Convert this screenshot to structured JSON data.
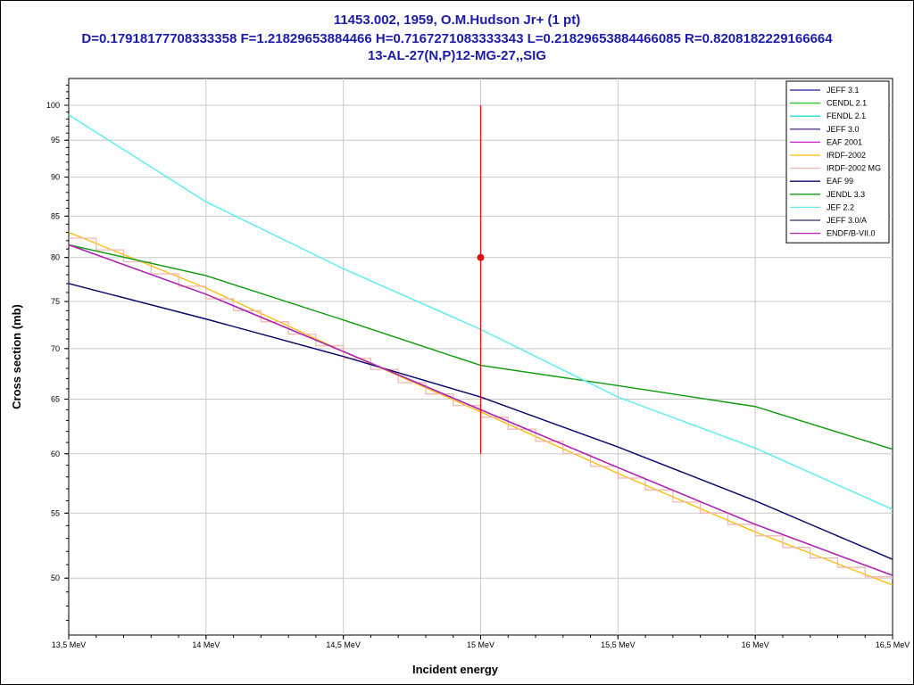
{
  "title": {
    "line1": "11453.002, 1959, O.M.Hudson Jr+ (1 pt)",
    "line2": "D=0.17918177708333358 F=1.21829653884466 H=0.7167271083333343 L=0.21829653884466085 R=0.8208182229166664",
    "line3": "13-AL-27(N,P)12-MG-27,,SIG"
  },
  "chart_data": {
    "type": "line",
    "xlabel": "Incident energy",
    "ylabel": "Cross section (mb)",
    "xlim": [
      13.5,
      16.5
    ],
    "ylim": [
      46,
      104
    ],
    "yscale": "log",
    "grid": true,
    "legend_position": "top-right",
    "x_ticks": [
      13.5,
      14.0,
      14.5,
      15.0,
      15.5,
      16.0,
      16.5
    ],
    "x_tick_labels": [
      "13,5 MeV",
      "14 MeV",
      "14,5 MeV",
      "15 MeV",
      "15,5 MeV",
      "16 MeV",
      "16,5 MeV"
    ],
    "y_ticks": [
      50,
      55,
      60,
      65,
      70,
      75,
      80,
      85,
      90,
      95,
      100
    ],
    "y_tick_labels": [
      "50",
      "55",
      "60",
      "65",
      "70",
      "75",
      "80",
      "85",
      "90",
      "95",
      "100"
    ],
    "series": [
      {
        "name": "JEFF 3.1",
        "color": "#1a1a9e",
        "x": [
          13.5,
          14.0,
          14.5,
          15.0,
          15.5,
          16.0,
          16.5
        ],
        "y": [
          77.0,
          73.1,
          69.2,
          65.2,
          60.6,
          56.0,
          51.4
        ]
      },
      {
        "name": "CENDL 2.1",
        "color": "#22cc22",
        "x": [
          13.5,
          14.0,
          14.5,
          15.0,
          15.5,
          16.0,
          16.5
        ],
        "y": [
          81.5,
          77.9,
          73.0,
          68.3,
          66.3,
          64.3,
          60.4
        ]
      },
      {
        "name": "FENDL 2.1",
        "color": "#22dddd",
        "x": [
          13.5,
          14.0,
          14.5,
          15.0,
          15.5,
          16.0,
          16.5
        ],
        "y": [
          98.6,
          86.8,
          78.7,
          72.0,
          65.2,
          60.5,
          55.3
        ]
      },
      {
        "name": "JEFF 3.0",
        "color": "#5a3a8a",
        "x": [
          13.5,
          14.0,
          14.5,
          15.0,
          15.5,
          16.0,
          16.5
        ],
        "y": [
          81.5,
          75.8,
          69.7,
          64.0,
          58.8,
          54.1,
          50.2
        ]
      },
      {
        "name": "EAF 2001",
        "color": "#cc22cc",
        "x": [
          13.5,
          14.0,
          14.5,
          15.0,
          15.5,
          16.0,
          16.5
        ],
        "y": [
          81.5,
          75.8,
          69.7,
          64.0,
          58.8,
          54.1,
          50.2
        ]
      },
      {
        "name": "IRDF-2002",
        "color": "#ffbb00",
        "x": [
          13.5,
          14.0,
          14.5,
          15.0,
          15.5,
          16.0,
          16.5
        ],
        "y": [
          83.0,
          76.5,
          69.7,
          63.8,
          58.3,
          53.5,
          49.5
        ]
      },
      {
        "name": "IRDF-2002 MG",
        "color": "#f0b8b0",
        "step": true,
        "x": [
          13.5,
          13.6,
          13.7,
          13.8,
          13.9,
          14.0,
          14.1,
          14.2,
          14.3,
          14.4,
          14.5,
          14.6,
          14.7,
          14.8,
          14.9,
          15.0,
          15.1,
          15.2,
          15.3,
          15.4,
          15.5,
          15.6,
          15.7,
          15.8,
          15.9,
          16.0,
          16.1,
          16.2,
          16.3,
          16.4,
          16.5
        ],
        "y": [
          82.3,
          80.9,
          79.5,
          78.1,
          76.7,
          75.3,
          74.0,
          72.8,
          71.5,
          70.3,
          69.0,
          67.9,
          66.6,
          65.5,
          64.4,
          63.3,
          62.2,
          61.1,
          60.0,
          58.9,
          57.9,
          56.9,
          55.9,
          55.0,
          54.1,
          53.2,
          52.3,
          51.5,
          50.8,
          50.1,
          49.5
        ]
      },
      {
        "name": "EAF 99",
        "color": "#0a0a6a",
        "x": [
          13.5,
          14.0,
          14.5,
          15.0,
          15.5,
          16.0,
          16.5
        ],
        "y": [
          77.0,
          73.1,
          69.2,
          65.2,
          60.6,
          56.0,
          51.4
        ]
      },
      {
        "name": "JENDL 3.3",
        "color": "#119911",
        "x": [
          13.5,
          14.0,
          14.5,
          15.0,
          15.5,
          16.0,
          16.5
        ],
        "y": [
          81.5,
          77.9,
          73.0,
          68.3,
          66.3,
          64.3,
          60.4
        ]
      },
      {
        "name": "JEF 2.2",
        "color": "#66eeee",
        "x": [
          13.5,
          14.0,
          14.5,
          15.0,
          15.5,
          16.0,
          16.5
        ],
        "y": [
          98.6,
          86.8,
          78.7,
          72.0,
          65.2,
          60.5,
          55.3
        ]
      },
      {
        "name": "JEFF 3.0/A",
        "color": "#3a2a5a",
        "x": [
          13.5,
          14.0,
          14.5,
          15.0,
          15.5,
          16.0,
          16.5
        ],
        "y": [
          81.5,
          75.8,
          69.7,
          64.0,
          58.8,
          54.1,
          50.2
        ]
      },
      {
        "name": "ENDF/B-VII.0",
        "color": "#bb22bb",
        "x": [
          13.5,
          14.0,
          14.5,
          15.0,
          15.5,
          16.0,
          16.5
        ],
        "y": [
          81.5,
          75.8,
          69.7,
          64.0,
          58.8,
          54.1,
          50.2
        ]
      }
    ],
    "experimental_points": [
      {
        "x": 15.0,
        "y": 80.0,
        "y_low": 60.0,
        "y_high": 100.0,
        "color": "#dd1111"
      }
    ]
  }
}
